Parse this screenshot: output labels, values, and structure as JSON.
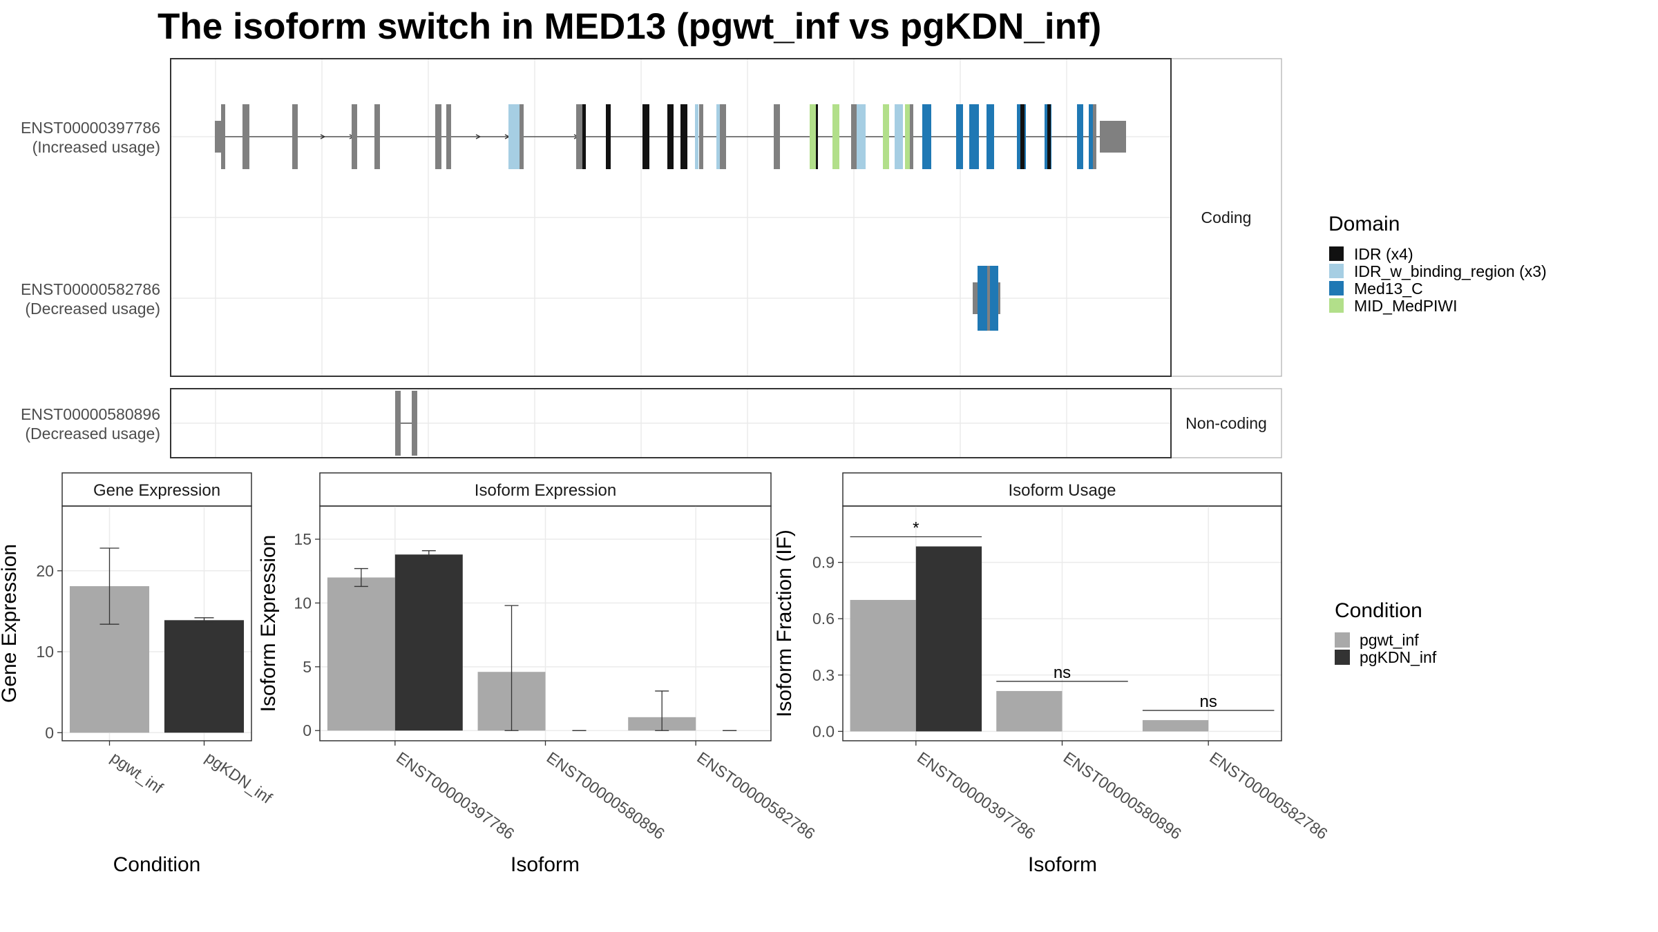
{
  "title": "The isoform switch in MED13 (pgwt_inf vs pgKDN_inf)",
  "transcript_panel": {
    "facets": [
      {
        "label": "Coding"
      },
      {
        "label": "Non-coding"
      }
    ],
    "isoforms": [
      {
        "id": "ENST00000397786",
        "usage": "(Increased usage)",
        "facet": 0
      },
      {
        "id": "ENST00000582786",
        "usage": "(Decreased usage)",
        "facet": 0
      },
      {
        "id": "ENST00000580896",
        "usage": "(Decreased usage)",
        "facet": 1
      }
    ]
  },
  "domain_legend": {
    "title": "Domain",
    "items": [
      {
        "label": "IDR (x4)",
        "color": "#111111"
      },
      {
        "label": "IDR_w_binding_region (x3)",
        "color": "#a6cee3"
      },
      {
        "label": "Med13_C",
        "color": "#1f78b4"
      },
      {
        "label": "MID_MedPIWI",
        "color": "#b2df8a"
      }
    ]
  },
  "condition_legend": {
    "title": "Condition",
    "items": [
      {
        "label": "pgwt_inf",
        "color": "#a9a9a9"
      },
      {
        "label": "pgKDN_inf",
        "color": "#333333"
      }
    ]
  },
  "chart_data": [
    {
      "type": "bar",
      "strip_title": "Gene Expression",
      "xlabel": "Condition",
      "ylabel": "Gene Expression",
      "categories": [
        "pgwt_inf",
        "pgKDN_inf"
      ],
      "values": [
        18.1,
        13.9
      ],
      "error_low": [
        13.4,
        13.6
      ],
      "error_high": [
        22.8,
        14.2
      ],
      "colors": [
        "#a9a9a9",
        "#333333"
      ],
      "ylim": [
        -1,
        28
      ],
      "yticks": [
        0,
        10,
        20
      ]
    },
    {
      "type": "bar",
      "strip_title": "Isoform Expression",
      "xlabel": "Isoform",
      "ylabel": "Isoform Expression",
      "categories": [
        "ENST00000397786",
        "ENST00000580896",
        "ENST00000582786"
      ],
      "series": [
        {
          "name": "pgwt_inf",
          "values": [
            12.0,
            4.6,
            1.05
          ],
          "error_low": [
            11.3,
            0.0,
            0.0
          ],
          "error_high": [
            12.7,
            9.8,
            3.1
          ]
        },
        {
          "name": "pgKDN_inf",
          "values": [
            13.8,
            0.0,
            0.0
          ],
          "error_low": [
            13.5,
            0.0,
            0.0
          ],
          "error_high": [
            14.1,
            0.0,
            0.0
          ]
        }
      ],
      "ylim": [
        -0.8,
        17.6
      ],
      "yticks": [
        0,
        5,
        10,
        15
      ]
    },
    {
      "type": "bar",
      "strip_title": "Isoform Usage",
      "xlabel": "Isoform",
      "ylabel": "Isoform Fraction (IF)",
      "categories": [
        "ENST00000397786",
        "ENST00000580896",
        "ENST00000582786"
      ],
      "series": [
        {
          "name": "pgwt_inf",
          "values": [
            0.7,
            0.215,
            0.06
          ]
        },
        {
          "name": "pgKDN_inf",
          "values": [
            0.985,
            0.0,
            0.0
          ]
        }
      ],
      "significance": [
        "*",
        "ns",
        "ns"
      ],
      "ylim": [
        -0.05,
        1.2
      ],
      "yticks": [
        0.0,
        0.3,
        0.6,
        0.9
      ],
      "ytick_labels": [
        "0.0",
        "0.3",
        "0.6",
        "0.9"
      ]
    }
  ]
}
